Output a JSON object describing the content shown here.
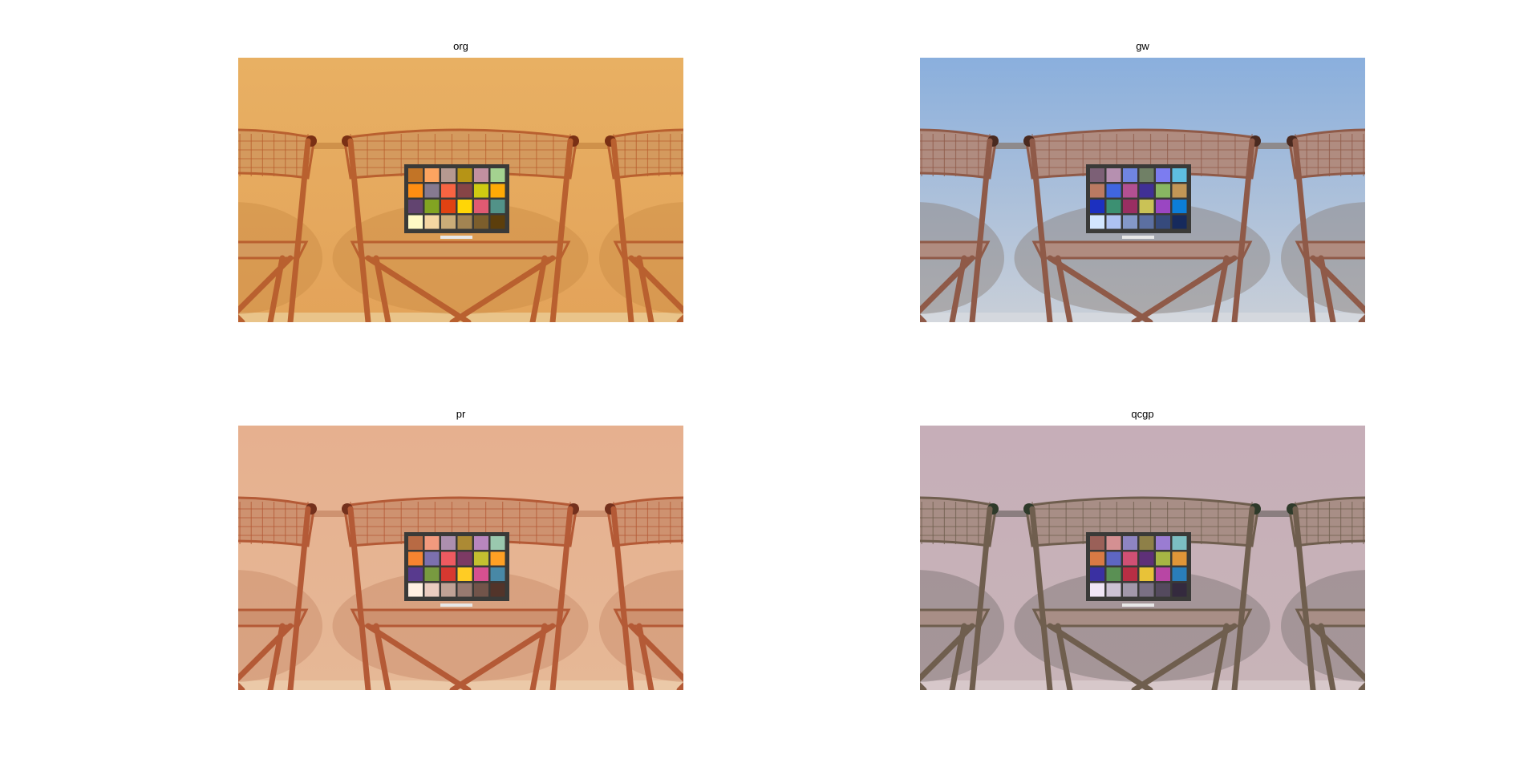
{
  "figure": {
    "panels": [
      {
        "title": "org",
        "tone": {
          "wall_top": "#E8B063",
          "wall_bottom": "#E3A35A",
          "chair": "#B9602F",
          "wicker": "#D49A5E",
          "dark": "#7A3014",
          "shadow": "#C98B45",
          "floor": "#E9C48A"
        }
      },
      {
        "title": "gw",
        "tone": {
          "wall_top": "#8AAFDD",
          "wall_bottom": "#C9CFD8",
          "chair": "#8F5A48",
          "wicker": "#B08C80",
          "dark": "#4A2A20",
          "shadow": "#8A7E78",
          "floor": "#D4D8DE"
        }
      },
      {
        "title": "pr",
        "tone": {
          "wall_top": "#E6B08F",
          "wall_bottom": "#E6B896",
          "chair": "#B45A36",
          "wicker": "#CE9270",
          "dark": "#73301C",
          "shadow": "#C88A68",
          "floor": "#EBC9A8"
        }
      },
      {
        "title": "qcgp",
        "tone": {
          "wall_top": "#C6AEB8",
          "wall_bottom": "#C8B4B8",
          "chair": "#6F5E4E",
          "wicker": "#A88E86",
          "dark": "#2E3A2A",
          "shadow": "#7A7270",
          "floor": "#D7C8CA"
        }
      }
    ]
  }
}
